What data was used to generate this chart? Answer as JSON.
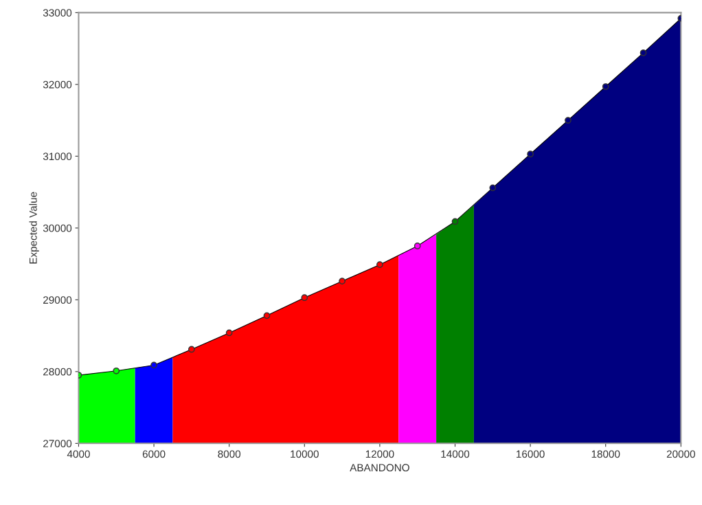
{
  "chart_data": {
    "type": "area",
    "xlabel": "ABANDONO",
    "ylabel": "Expected Value",
    "xlim": [
      4000,
      20000
    ],
    "ylim": [
      27000,
      33000
    ],
    "xticks": [
      4000,
      6000,
      8000,
      10000,
      12000,
      14000,
      16000,
      18000,
      20000
    ],
    "yticks": [
      27000,
      28000,
      29000,
      30000,
      31000,
      32000,
      33000
    ],
    "grid": false,
    "legend": false,
    "series": [
      {
        "color": "#00ff00",
        "x": [
          4000,
          5000,
          5500
        ],
        "values": [
          27950,
          28010,
          28050
        ]
      },
      {
        "color": "#0000ff",
        "x": [
          5500,
          6000,
          6500
        ],
        "values": [
          28050,
          28090,
          28200
        ]
      },
      {
        "color": "#ff0000",
        "x": [
          6500,
          7000,
          8000,
          9000,
          10000,
          11000,
          12000,
          12500
        ],
        "values": [
          28200,
          28310,
          28540,
          28780,
          29030,
          29260,
          29490,
          29620
        ]
      },
      {
        "color": "#ff00ff",
        "x": [
          12500,
          13000,
          13500
        ],
        "values": [
          29620,
          29750,
          29910
        ]
      },
      {
        "color": "#008000",
        "x": [
          13500,
          14000,
          14500
        ],
        "values": [
          29910,
          30090,
          30320
        ]
      },
      {
        "color": "#000080",
        "x": [
          14500,
          15000,
          16000,
          17000,
          18000,
          19000,
          20000
        ],
        "values": [
          30320,
          30560,
          31030,
          31500,
          31970,
          32440,
          32920
        ]
      },
      {
        "type": "line",
        "color": "#000000",
        "marker": "circle",
        "x": [
          4000,
          5000,
          6000,
          7000,
          8000,
          9000,
          10000,
          11000,
          12000,
          13000,
          14000,
          15000,
          16000,
          17000,
          18000,
          19000,
          20000
        ],
        "values": [
          27950,
          28010,
          28090,
          28310,
          28540,
          28780,
          29030,
          29260,
          29490,
          29750,
          30090,
          30560,
          31030,
          31500,
          31970,
          32440,
          32920
        ],
        "colors": [
          "#00ff00",
          "#00ff00",
          "#0000ff",
          "#ff0000",
          "#ff0000",
          "#ff0000",
          "#ff0000",
          "#ff0000",
          "#ff0000",
          "#ff00ff",
          "#008000",
          "#000080",
          "#000080",
          "#000080",
          "#000080",
          "#000080",
          "#000080"
        ]
      }
    ]
  }
}
